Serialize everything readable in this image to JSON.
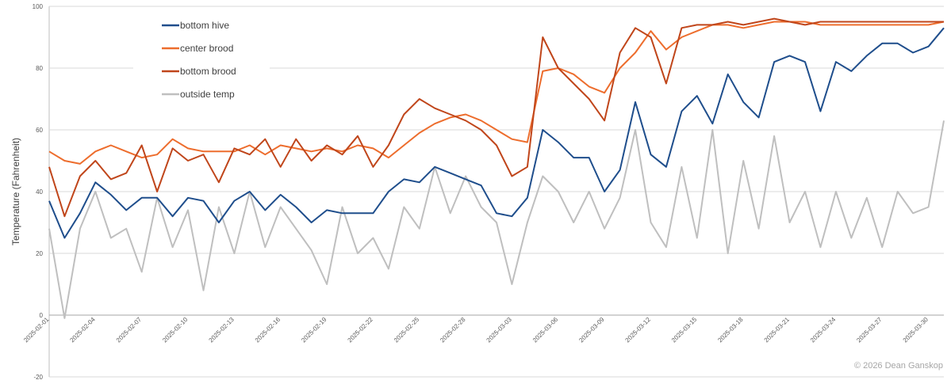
{
  "chart_data": {
    "type": "line",
    "title": "",
    "xlabel": "",
    "ylabel": "Temperature (Fahrenheit)",
    "ylim": [
      -20,
      100
    ],
    "yticks": [
      -20,
      0,
      20,
      40,
      60,
      80,
      100
    ],
    "grid": true,
    "legend_position": "top-left",
    "x_start": "2025-02-01",
    "x_end": "2025-03-31",
    "xtick_labels": [
      "2025-02-01",
      "2025-02-04",
      "2025-02-07",
      "2025-02-10",
      "2025-02-13",
      "2025-02-16",
      "2025-02-19",
      "2025-02-22",
      "2025-02-25",
      "2025-02-28",
      "2025-03-03",
      "2025-03-06",
      "2025-03-09",
      "2025-03-12",
      "2025-03-15",
      "2025-03-18",
      "2025-03-21",
      "2025-03-24",
      "2025-03-27",
      "2025-03-30"
    ],
    "x": [
      "2025-02-01",
      "2025-02-02",
      "2025-02-03",
      "2025-02-04",
      "2025-02-05",
      "2025-02-06",
      "2025-02-07",
      "2025-02-08",
      "2025-02-09",
      "2025-02-10",
      "2025-02-11",
      "2025-02-12",
      "2025-02-13",
      "2025-02-14",
      "2025-02-15",
      "2025-02-16",
      "2025-02-17",
      "2025-02-18",
      "2025-02-19",
      "2025-02-20",
      "2025-02-21",
      "2025-02-22",
      "2025-02-23",
      "2025-02-24",
      "2025-02-25",
      "2025-02-26",
      "2025-02-27",
      "2025-02-28",
      "2025-03-01",
      "2025-03-02",
      "2025-03-03",
      "2025-03-04",
      "2025-03-05",
      "2025-03-06",
      "2025-03-07",
      "2025-03-08",
      "2025-03-09",
      "2025-03-10",
      "2025-03-11",
      "2025-03-12",
      "2025-03-13",
      "2025-03-14",
      "2025-03-15",
      "2025-03-16",
      "2025-03-17",
      "2025-03-18",
      "2025-03-19",
      "2025-03-20",
      "2025-03-21",
      "2025-03-22",
      "2025-03-23",
      "2025-03-24",
      "2025-03-25",
      "2025-03-26",
      "2025-03-27",
      "2025-03-28",
      "2025-03-29",
      "2025-03-30",
      "2025-03-31"
    ],
    "series": [
      {
        "name": "bottom hive",
        "color": "#1f4e8c",
        "values": [
          37,
          25,
          33,
          43,
          39,
          34,
          38,
          38,
          32,
          38,
          37,
          30,
          37,
          40,
          34,
          39,
          35,
          30,
          34,
          33,
          33,
          33,
          40,
          44,
          43,
          48,
          46,
          44,
          42,
          33,
          32,
          38,
          60,
          56,
          51,
          51,
          40,
          47,
          69,
          52,
          48,
          66,
          71,
          62,
          78,
          69,
          64,
          82,
          84,
          82,
          66,
          82,
          79,
          84,
          88,
          88,
          85,
          87,
          93
        ]
      },
      {
        "name": "center brood",
        "color": "#ed6d2d",
        "values": [
          53,
          50,
          49,
          53,
          55,
          53,
          51,
          52,
          57,
          54,
          53,
          53,
          53,
          55,
          52,
          55,
          54,
          53,
          54,
          53,
          55,
          54,
          51,
          55,
          59,
          62,
          64,
          65,
          63,
          60,
          57,
          56,
          79,
          80,
          78,
          74,
          72,
          80,
          85,
          92,
          86,
          90,
          92,
          94,
          94,
          93,
          94,
          95,
          95,
          95,
          94,
          94,
          94,
          94,
          94,
          94,
          94,
          94,
          95
        ]
      },
      {
        "name": "bottom brood",
        "color": "#c0461b",
        "values": [
          48,
          32,
          45,
          50,
          44,
          46,
          55,
          40,
          54,
          50,
          52,
          43,
          54,
          52,
          57,
          48,
          57,
          50,
          55,
          52,
          58,
          48,
          55,
          65,
          70,
          67,
          65,
          63,
          60,
          55,
          45,
          48,
          90,
          80,
          75,
          70,
          63,
          85,
          93,
          90,
          75,
          93,
          94,
          94,
          95,
          94,
          95,
          96,
          95,
          94,
          95,
          95,
          95,
          95,
          95,
          95,
          95,
          95,
          95
        ]
      },
      {
        "name": "outside temp",
        "color": "#bfbfbf",
        "values": [
          28,
          -1,
          28,
          40,
          25,
          28,
          14,
          38,
          22,
          34,
          8,
          35,
          20,
          40,
          22,
          35,
          28,
          21,
          10,
          35,
          20,
          25,
          15,
          35,
          28,
          48,
          33,
          45,
          35,
          30,
          10,
          30,
          45,
          40,
          30,
          40,
          28,
          38,
          60,
          30,
          22,
          48,
          25,
          60,
          20,
          50,
          28,
          58,
          30,
          40,
          22,
          40,
          25,
          38,
          22,
          40,
          33,
          35,
          63
        ]
      }
    ]
  },
  "footer": {
    "copyright": "© 2026 Dean Ganskop"
  }
}
